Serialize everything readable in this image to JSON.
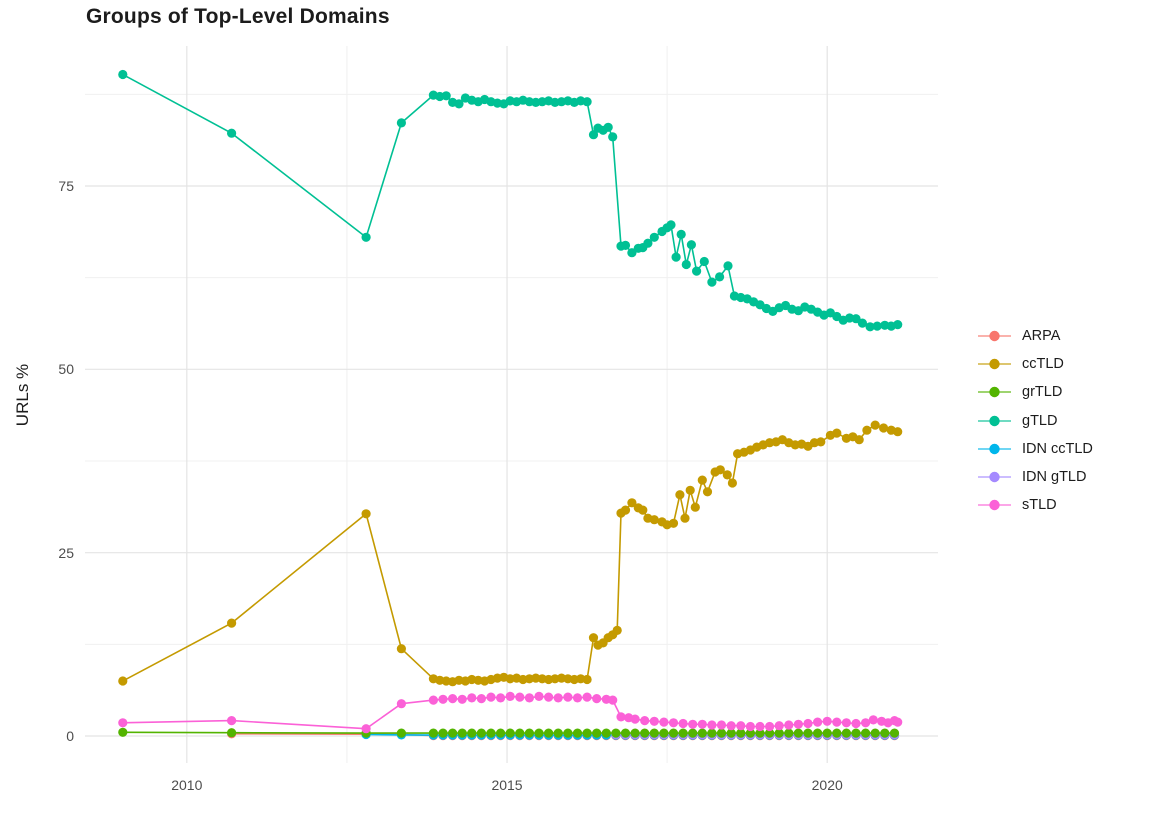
{
  "title": "Groups of Top-Level Domains",
  "y_axis_title": "URLs %",
  "legend": {
    "entries": [
      {
        "label": "ARPA",
        "color": "#F8766D"
      },
      {
        "label": "ccTLD",
        "color": "#C49A00"
      },
      {
        "label": "grTLD",
        "color": "#53B400"
      },
      {
        "label": "gTLD",
        "color": "#00C094"
      },
      {
        "label": "IDN ccTLD",
        "color": "#00B6EB"
      },
      {
        "label": "IDN gTLD",
        "color": "#A58AFF"
      },
      {
        "label": "sTLD",
        "color": "#FB61D7"
      }
    ]
  },
  "chart_data": {
    "type": "line",
    "title": "Groups of Top-Level Domains",
    "xlabel": "",
    "ylabel": "URLs %",
    "xlim": [
      2008.41,
      2021.73
    ],
    "ylim": [
      -3.68,
      94.09
    ],
    "x_ticks": [
      2010,
      2015,
      2020
    ],
    "x_tick_labels": [
      "2010",
      "2015",
      "2020"
    ],
    "x_minor": [
      2012.5,
      2017.5
    ],
    "y_ticks": [
      0,
      25,
      50,
      75
    ],
    "y_tick_labels": [
      "0",
      "25",
      "50",
      "75"
    ],
    "y_minor": [
      12.5,
      37.5,
      62.5,
      87.5
    ],
    "grid": true,
    "legend_position": "right",
    "style": {
      "grid_major": "#e4e4e4",
      "grid_minor": "#f0f0f0",
      "axis_text": "#4d4d4d",
      "point_radius": 4.6,
      "line_width": 1.6
    },
    "draw_order": [
      "ARPA",
      "IDN ccTLD",
      "IDN gTLD",
      "grTLD",
      "ccTLD",
      "gTLD",
      "sTLD"
    ],
    "series": [
      {
        "name": "ARPA",
        "color": "#F8766D",
        "points": [
          [
            2010.7,
            0.3
          ],
          [
            2012.8,
            0.25
          ],
          [
            2013.35,
            0.2
          ]
        ],
        "flat": {
          "from": 2013.85,
          "to": 2021.05,
          "step": 0.15,
          "value": 0.05
        }
      },
      {
        "name": "ccTLD",
        "color": "#C49A00",
        "points": [
          [
            2009.0,
            7.5
          ],
          [
            2010.7,
            15.4
          ],
          [
            2012.8,
            30.3
          ],
          [
            2013.35,
            11.9
          ],
          [
            2013.85,
            7.8
          ],
          [
            2013.95,
            7.6
          ],
          [
            2014.05,
            7.5
          ],
          [
            2014.15,
            7.4
          ],
          [
            2014.25,
            7.6
          ],
          [
            2014.35,
            7.5
          ],
          [
            2014.45,
            7.7
          ],
          [
            2014.55,
            7.6
          ],
          [
            2014.65,
            7.5
          ],
          [
            2014.75,
            7.7
          ],
          [
            2014.85,
            7.9
          ],
          [
            2014.95,
            8.0
          ],
          [
            2015.05,
            7.8
          ],
          [
            2015.15,
            7.9
          ],
          [
            2015.25,
            7.7
          ],
          [
            2015.35,
            7.8
          ],
          [
            2015.45,
            7.9
          ],
          [
            2015.55,
            7.8
          ],
          [
            2015.65,
            7.7
          ],
          [
            2015.75,
            7.8
          ],
          [
            2015.85,
            7.9
          ],
          [
            2015.95,
            7.8
          ],
          [
            2016.05,
            7.7
          ],
          [
            2016.15,
            7.8
          ],
          [
            2016.25,
            7.7
          ],
          [
            2016.35,
            13.4
          ],
          [
            2016.42,
            12.4
          ],
          [
            2016.5,
            12.7
          ],
          [
            2016.58,
            13.4
          ],
          [
            2016.65,
            13.8
          ],
          [
            2016.72,
            14.4
          ],
          [
            2016.78,
            30.4
          ],
          [
            2016.85,
            30.8
          ],
          [
            2016.95,
            31.8
          ],
          [
            2017.05,
            31.1
          ],
          [
            2017.12,
            30.8
          ],
          [
            2017.2,
            29.7
          ],
          [
            2017.3,
            29.5
          ],
          [
            2017.42,
            29.2
          ],
          [
            2017.5,
            28.8
          ],
          [
            2017.6,
            29.0
          ],
          [
            2017.7,
            32.9
          ],
          [
            2017.78,
            29.7
          ],
          [
            2017.86,
            33.5
          ],
          [
            2017.94,
            31.2
          ],
          [
            2018.05,
            34.9
          ],
          [
            2018.13,
            33.3
          ],
          [
            2018.25,
            36.0
          ],
          [
            2018.33,
            36.3
          ],
          [
            2018.44,
            35.6
          ],
          [
            2018.52,
            34.5
          ],
          [
            2018.6,
            38.5
          ],
          [
            2018.7,
            38.7
          ],
          [
            2018.8,
            39.0
          ],
          [
            2018.9,
            39.4
          ],
          [
            2019.0,
            39.7
          ],
          [
            2019.1,
            40.0
          ],
          [
            2019.2,
            40.1
          ],
          [
            2019.3,
            40.4
          ],
          [
            2019.4,
            40.0
          ],
          [
            2019.5,
            39.7
          ],
          [
            2019.6,
            39.8
          ],
          [
            2019.7,
            39.5
          ],
          [
            2019.8,
            40.0
          ],
          [
            2019.9,
            40.1
          ],
          [
            2020.05,
            41.0
          ],
          [
            2020.15,
            41.3
          ],
          [
            2020.3,
            40.6
          ],
          [
            2020.4,
            40.8
          ],
          [
            2020.5,
            40.4
          ],
          [
            2020.62,
            41.7
          ],
          [
            2020.75,
            42.4
          ],
          [
            2020.88,
            42.0
          ],
          [
            2021.0,
            41.7
          ],
          [
            2021.1,
            41.5
          ]
        ]
      },
      {
        "name": "grTLD",
        "color": "#53B400",
        "points": [
          [
            2009.0,
            0.5
          ],
          [
            2010.7,
            0.45
          ],
          [
            2012.8,
            0.4
          ],
          [
            2013.35,
            0.4
          ]
        ],
        "flat": {
          "from": 2013.85,
          "to": 2021.05,
          "step": 0.15,
          "value": 0.4
        }
      },
      {
        "name": "gTLD",
        "color": "#00C094",
        "points": [
          [
            2009.0,
            90.2
          ],
          [
            2010.7,
            82.2
          ],
          [
            2012.8,
            68.0
          ],
          [
            2013.35,
            83.6
          ],
          [
            2013.85,
            87.4
          ],
          [
            2013.95,
            87.2
          ],
          [
            2014.05,
            87.3
          ],
          [
            2014.15,
            86.4
          ],
          [
            2014.25,
            86.2
          ],
          [
            2014.35,
            87.0
          ],
          [
            2014.45,
            86.7
          ],
          [
            2014.55,
            86.5
          ],
          [
            2014.65,
            86.8
          ],
          [
            2014.75,
            86.5
          ],
          [
            2014.85,
            86.3
          ],
          [
            2014.95,
            86.2
          ],
          [
            2015.05,
            86.6
          ],
          [
            2015.15,
            86.5
          ],
          [
            2015.25,
            86.7
          ],
          [
            2015.35,
            86.5
          ],
          [
            2015.45,
            86.4
          ],
          [
            2015.55,
            86.5
          ],
          [
            2015.65,
            86.6
          ],
          [
            2015.75,
            86.4
          ],
          [
            2015.85,
            86.5
          ],
          [
            2015.95,
            86.6
          ],
          [
            2016.05,
            86.4
          ],
          [
            2016.15,
            86.6
          ],
          [
            2016.25,
            86.5
          ],
          [
            2016.35,
            82.0
          ],
          [
            2016.42,
            82.9
          ],
          [
            2016.5,
            82.6
          ],
          [
            2016.58,
            83.0
          ],
          [
            2016.65,
            81.7
          ],
          [
            2016.78,
            66.8
          ],
          [
            2016.85,
            66.9
          ],
          [
            2016.95,
            65.9
          ],
          [
            2017.05,
            66.5
          ],
          [
            2017.12,
            66.6
          ],
          [
            2017.2,
            67.2
          ],
          [
            2017.3,
            68.0
          ],
          [
            2017.42,
            68.8
          ],
          [
            2017.5,
            69.3
          ],
          [
            2017.56,
            69.7
          ],
          [
            2017.64,
            65.3
          ],
          [
            2017.72,
            68.4
          ],
          [
            2017.8,
            64.3
          ],
          [
            2017.88,
            67.0
          ],
          [
            2017.96,
            63.4
          ],
          [
            2018.08,
            64.7
          ],
          [
            2018.2,
            61.9
          ],
          [
            2018.32,
            62.6
          ],
          [
            2018.45,
            64.1
          ],
          [
            2018.55,
            60.0
          ],
          [
            2018.65,
            59.8
          ],
          [
            2018.75,
            59.6
          ],
          [
            2018.85,
            59.2
          ],
          [
            2018.95,
            58.8
          ],
          [
            2019.05,
            58.3
          ],
          [
            2019.15,
            57.9
          ],
          [
            2019.25,
            58.4
          ],
          [
            2019.35,
            58.7
          ],
          [
            2019.45,
            58.2
          ],
          [
            2019.55,
            58.0
          ],
          [
            2019.65,
            58.5
          ],
          [
            2019.75,
            58.2
          ],
          [
            2019.85,
            57.8
          ],
          [
            2019.95,
            57.4
          ],
          [
            2020.05,
            57.7
          ],
          [
            2020.15,
            57.2
          ],
          [
            2020.25,
            56.7
          ],
          [
            2020.35,
            57.0
          ],
          [
            2020.45,
            56.9
          ],
          [
            2020.55,
            56.3
          ],
          [
            2020.67,
            55.8
          ],
          [
            2020.78,
            55.9
          ],
          [
            2020.9,
            56.0
          ],
          [
            2021.0,
            55.9
          ],
          [
            2021.1,
            56.1
          ]
        ]
      },
      {
        "name": "IDN ccTLD",
        "color": "#00B6EB",
        "points": [
          [
            2012.8,
            0.2
          ],
          [
            2013.35,
            0.15
          ]
        ],
        "flat": {
          "from": 2013.85,
          "to": 2021.05,
          "step": 0.15,
          "value": 0.12
        }
      },
      {
        "name": "IDN gTLD",
        "color": "#A58AFF",
        "points": [],
        "flat": {
          "from": 2016.7,
          "to": 2021.05,
          "step": 0.15,
          "value": 0.18
        }
      },
      {
        "name": "sTLD",
        "color": "#FB61D7",
        "points": [
          [
            2009.0,
            1.8
          ],
          [
            2010.7,
            2.1
          ],
          [
            2012.8,
            1.0
          ],
          [
            2013.35,
            4.4
          ],
          [
            2013.85,
            4.9
          ],
          [
            2014.0,
            5.0
          ],
          [
            2014.15,
            5.1
          ],
          [
            2014.3,
            5.0
          ],
          [
            2014.45,
            5.2
          ],
          [
            2014.6,
            5.1
          ],
          [
            2014.75,
            5.3
          ],
          [
            2014.9,
            5.2
          ],
          [
            2015.05,
            5.4
          ],
          [
            2015.2,
            5.3
          ],
          [
            2015.35,
            5.2
          ],
          [
            2015.5,
            5.4
          ],
          [
            2015.65,
            5.3
          ],
          [
            2015.8,
            5.2
          ],
          [
            2015.95,
            5.3
          ],
          [
            2016.1,
            5.2
          ],
          [
            2016.25,
            5.3
          ],
          [
            2016.4,
            5.1
          ],
          [
            2016.55,
            5.0
          ],
          [
            2016.65,
            4.9
          ],
          [
            2016.78,
            2.6
          ],
          [
            2016.9,
            2.5
          ],
          [
            2017.0,
            2.3
          ],
          [
            2017.15,
            2.1
          ],
          [
            2017.3,
            2.0
          ],
          [
            2017.45,
            1.9
          ],
          [
            2017.6,
            1.8
          ],
          [
            2017.75,
            1.7
          ],
          [
            2017.9,
            1.6
          ],
          [
            2018.05,
            1.6
          ],
          [
            2018.2,
            1.5
          ],
          [
            2018.35,
            1.5
          ],
          [
            2018.5,
            1.4
          ],
          [
            2018.65,
            1.4
          ],
          [
            2018.8,
            1.3
          ],
          [
            2018.95,
            1.3
          ],
          [
            2019.1,
            1.3
          ],
          [
            2019.25,
            1.4
          ],
          [
            2019.4,
            1.5
          ],
          [
            2019.55,
            1.6
          ],
          [
            2019.7,
            1.7
          ],
          [
            2019.85,
            1.9
          ],
          [
            2020.0,
            2.0
          ],
          [
            2020.15,
            1.9
          ],
          [
            2020.3,
            1.8
          ],
          [
            2020.45,
            1.7
          ],
          [
            2020.6,
            1.8
          ],
          [
            2020.72,
            2.2
          ],
          [
            2020.85,
            2.0
          ],
          [
            2020.95,
            1.8
          ],
          [
            2021.05,
            2.1
          ],
          [
            2021.1,
            1.9
          ]
        ]
      }
    ]
  }
}
